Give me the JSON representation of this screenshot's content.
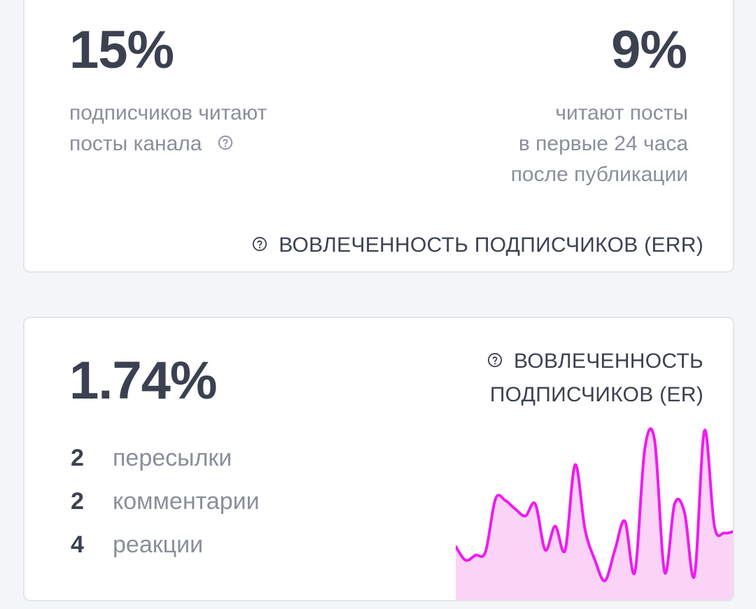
{
  "err_card": {
    "read_percent": "15%",
    "read_desc_line1": "подписчиков читают",
    "read_desc_line2": "посты канала",
    "first24_percent": "9%",
    "first24_line1": "читают посты",
    "first24_line2": "в первые 24 часа",
    "first24_line3": "после публикации",
    "section_title": "ВОВЛЕЧЕННОСТЬ ПОДПИСЧИКОВ (ERR)",
    "help_icon": "question-circle-icon"
  },
  "er_card": {
    "er_percent": "1.74%",
    "section_title_line1": "ВОВЛЕЧЕННОСТЬ",
    "section_title_line2": "ПОДПИСЧИКОВ (ER)",
    "help_icon": "question-circle-icon",
    "stats": [
      {
        "value": "2",
        "label": "пересылки"
      },
      {
        "value": "2",
        "label": "комментарии"
      },
      {
        "value": "4",
        "label": "реакции"
      }
    ]
  },
  "chart_data": {
    "type": "area",
    "color": "#ee1cf0",
    "fill": "#fbd3f7",
    "values": [
      30,
      22,
      25,
      27,
      58,
      57,
      52,
      48,
      55,
      28,
      42,
      28,
      78,
      40,
      22,
      10,
      28,
      45,
      15,
      87,
      92,
      15,
      55,
      50,
      13,
      98,
      42,
      38,
      39
    ],
    "ylim": [
      0,
      100
    ]
  },
  "colors": {
    "background": "#f4f5f8",
    "card": "#ffffff",
    "card_border": "#e3e5ea",
    "heading_text": "#3b4150",
    "muted_text": "#8a8f9a"
  }
}
